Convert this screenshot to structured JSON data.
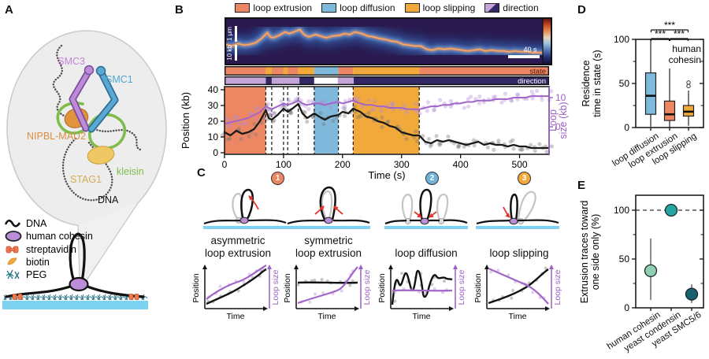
{
  "panels": {
    "a": "A",
    "b": "B",
    "c": "C",
    "d": "D",
    "e": "E"
  },
  "panel_a": {
    "labels": {
      "smc3": "SMC3",
      "smc1": "SMC1",
      "nipbl": "NIPBL-MAU2",
      "stag1": "STAG1",
      "kleisin": "kleisin",
      "dna": "DNA"
    },
    "legend": [
      {
        "icon": "dna-squiggle-icon",
        "label": "DNA"
      },
      {
        "icon": "cohesin-oval-icon",
        "label": "human cohesin"
      },
      {
        "icon": "streptavidin-icon",
        "label": "streptavidin"
      },
      {
        "icon": "biotin-icon",
        "label": "biotin"
      },
      {
        "icon": "peg-icon",
        "label": "PEG"
      }
    ]
  },
  "panel_b": {
    "legend": [
      {
        "label": "loop extrusion",
        "color": "#ED8663"
      },
      {
        "label": "loop diffusion",
        "color": "#7FB9DC"
      },
      {
        "label": "loop slipping",
        "color": "#F2A93B"
      },
      {
        "label": "direction",
        "color_light": "#C3A5D8",
        "color_dark": "#332765"
      }
    ],
    "kymograph": {
      "scale_bar_um": "1 μm",
      "scale_bar_kb": "10 kb",
      "scale_bar_s": "40 s"
    },
    "state_bar_label": "state",
    "direction_bar_label": "direction",
    "axes": {
      "xlabel": "Time (s)",
      "ylabel_left": "Position (kb)",
      "ylabel_right_line1": "Loop",
      "ylabel_right_line2": "size (kb)"
    }
  },
  "panel_c": {
    "badges": [
      {
        "num": "1",
        "color": "#ED8663"
      },
      {
        "num": "2",
        "color": "#6FB3D8"
      },
      {
        "num": "3",
        "color": "#F2A93B"
      }
    ],
    "items": [
      {
        "line1": "asymmetric",
        "line2": "loop extrusion"
      },
      {
        "line1": "symmetric",
        "line2": "loop extrusion"
      },
      {
        "line1": "loop diffusion",
        "line2": ""
      },
      {
        "line1": "loop slipping",
        "line2": ""
      }
    ],
    "mini_axes": {
      "x": "Time",
      "y_left": "Position",
      "y_right": "Loop size"
    }
  },
  "chart_data": [
    {
      "id": "B_trace",
      "type": "line",
      "xlabel": "Time (s)",
      "ylabel_left": "Position (kb)",
      "ylabel_right": "Loop size (kb)",
      "xlim": [
        0,
        550
      ],
      "ylim_left": [
        0,
        40
      ],
      "x_ticks": [
        0,
        100,
        200,
        300,
        400,
        500
      ],
      "y_ticks": [
        0,
        10,
        20,
        30,
        40
      ],
      "right_ticks": [
        0,
        10
      ],
      "regions": [
        {
          "state": "loop extrusion",
          "t0": 0,
          "t1": 70,
          "color": "#ED8663"
        },
        {
          "state": "loop diffusion",
          "t0": 152,
          "t1": 193,
          "color": "#7FB9DC"
        },
        {
          "state": "loop slipping",
          "t0": 218,
          "t1": 330,
          "color": "#F2A93B"
        }
      ],
      "dashed_lines": [
        70,
        80,
        100,
        107,
        125,
        152,
        193,
        218,
        330
      ],
      "state_colors": {
        "loop extrusion": "#ED8663",
        "loop diffusion": "#7FB9DC",
        "loop slipping": "#F2A93B"
      },
      "direction_colors": {
        "light": "#C3A5D8",
        "dark": "#332765",
        "none": "#FFFFFF"
      },
      "state_segments": [
        {
          "state": "loop extrusion",
          "t0": 0,
          "t1": 70
        },
        {
          "state": "loop slipping",
          "t0": 70,
          "t1": 80
        },
        {
          "state": "loop extrusion",
          "t0": 80,
          "t1": 100
        },
        {
          "state": "loop slipping",
          "t0": 100,
          "t1": 107
        },
        {
          "state": "loop extrusion",
          "t0": 107,
          "t1": 125
        },
        {
          "state": "loop slipping",
          "t0": 125,
          "t1": 152
        },
        {
          "state": "loop diffusion",
          "t0": 152,
          "t1": 193
        },
        {
          "state": "loop extrusion",
          "t0": 193,
          "t1": 218
        },
        {
          "state": "loop slipping",
          "t0": 218,
          "t1": 330
        },
        {
          "state": "loop extrusion",
          "t0": 330,
          "t1": 550
        }
      ],
      "direction_segments": [
        {
          "dir": "light",
          "t0": 0,
          "t1": 70
        },
        {
          "dir": "dark",
          "t0": 70,
          "t1": 80
        },
        {
          "dir": "light",
          "t0": 80,
          "t1": 127
        },
        {
          "dir": "dark",
          "t0": 127,
          "t1": 152
        },
        {
          "dir": "none",
          "t0": 152,
          "t1": 192
        },
        {
          "dir": "light",
          "t0": 192,
          "t1": 219
        },
        {
          "dir": "dark",
          "t0": 219,
          "t1": 550
        }
      ],
      "series": [
        {
          "name": "position",
          "color": "#1a1a1a",
          "axis": "left",
          "x": [
            0,
            10,
            20,
            30,
            40,
            50,
            60,
            70,
            75,
            80,
            90,
            100,
            107,
            115,
            125,
            132,
            140,
            152,
            160,
            170,
            180,
            193,
            200,
            210,
            218,
            230,
            240,
            250,
            260,
            270,
            280,
            290,
            300,
            310,
            320,
            330,
            340,
            350,
            360,
            370,
            380,
            390,
            400,
            410,
            420,
            430,
            440,
            450,
            460,
            470,
            480,
            490,
            500,
            510,
            520,
            530,
            540,
            550
          ],
          "y": [
            13,
            11,
            14,
            12,
            13,
            15,
            20,
            27,
            22,
            21,
            24,
            28,
            26,
            28,
            31,
            25,
            22,
            25,
            23,
            21,
            23,
            24,
            26,
            25,
            28,
            26,
            23,
            22,
            20,
            19,
            17,
            16,
            13,
            12,
            11,
            11,
            7,
            6,
            8,
            7,
            8,
            7,
            6,
            5,
            6,
            7,
            5,
            6,
            5,
            5,
            4,
            5,
            4,
            4,
            3,
            3,
            3,
            3
          ]
        },
        {
          "name": "loop size",
          "color": "#A266C9",
          "axis": "right",
          "x": [
            0,
            10,
            20,
            30,
            40,
            50,
            60,
            70,
            75,
            80,
            90,
            100,
            107,
            115,
            125,
            132,
            140,
            152,
            160,
            170,
            180,
            193,
            200,
            210,
            218,
            230,
            240,
            250,
            260,
            270,
            280,
            290,
            300,
            310,
            320,
            330,
            340,
            350,
            360,
            370,
            380,
            390,
            400,
            410,
            420,
            430,
            440,
            450,
            460,
            470,
            480,
            490,
            500,
            510,
            520,
            530,
            540,
            550
          ],
          "y": [
            1,
            1.5,
            2,
            2.5,
            3,
            4,
            5,
            7,
            6.5,
            6,
            7,
            8,
            7.5,
            8,
            9,
            8,
            7.5,
            8,
            8,
            7.5,
            8,
            8.5,
            8,
            8.5,
            9,
            8,
            7.5,
            7.5,
            7,
            7,
            6.5,
            6.5,
            6.5,
            6,
            6,
            6,
            6.5,
            7,
            7,
            7.5,
            7.5,
            8,
            8,
            8.5,
            8.5,
            9,
            9,
            9,
            9.5,
            9.5,
            9.5,
            10,
            10,
            10,
            10.5,
            10.5,
            10.5,
            10.5
          ]
        }
      ]
    },
    {
      "id": "D_box",
      "type": "box",
      "ylabel_line1": "Residence",
      "ylabel_line2": "time in state (s)",
      "ylim": [
        0,
        100
      ],
      "y_ticks": [
        0,
        50,
        100
      ],
      "y_minor_ticks": [
        25,
        75
      ],
      "categories": [
        "loop diffusion",
        "loop extrusion",
        "loop slipping"
      ],
      "boxes": [
        {
          "median": 36,
          "q1": 15,
          "q3": 62,
          "lo": 1,
          "hi": 100,
          "outliers": [],
          "color": "#7FB9DC"
        },
        {
          "median": 15,
          "q1": 8,
          "q3": 30,
          "lo": 0,
          "hi": 67,
          "outliers": [],
          "color": "#ED8663"
        },
        {
          "median": 18,
          "q1": 13,
          "q3": 25,
          "lo": 2,
          "hi": 42,
          "outliers": [
            47,
            51
          ],
          "color": "#F2A93B"
        }
      ],
      "significance": [
        {
          "a": 0,
          "b": 1,
          "label": "***"
        },
        {
          "a": 1,
          "b": 2,
          "label": "***"
        },
        {
          "a": 0,
          "b": 2,
          "label": "***"
        }
      ],
      "annotation_line1": "human",
      "annotation_line2": "cohesin"
    },
    {
      "id": "E_points",
      "type": "scatter",
      "ylabel_line1": "Extrusion traces toward",
      "ylabel_line2": "one side only (%)",
      "ylim": [
        0,
        112
      ],
      "y_ticks": [
        0,
        50,
        100
      ],
      "y_minor_ticks": [
        25,
        75
      ],
      "categories": [
        "human cohesin",
        "yeast condensin",
        "yeast SMC5/6"
      ],
      "values": [
        38,
        100,
        14
      ],
      "err_lo": [
        8,
        100,
        5
      ],
      "err_hi": [
        71,
        100,
        24
      ],
      "colors": [
        "#8FD0B5",
        "#27A5A2",
        "#16606F"
      ],
      "dashed_y": 100
    }
  ]
}
